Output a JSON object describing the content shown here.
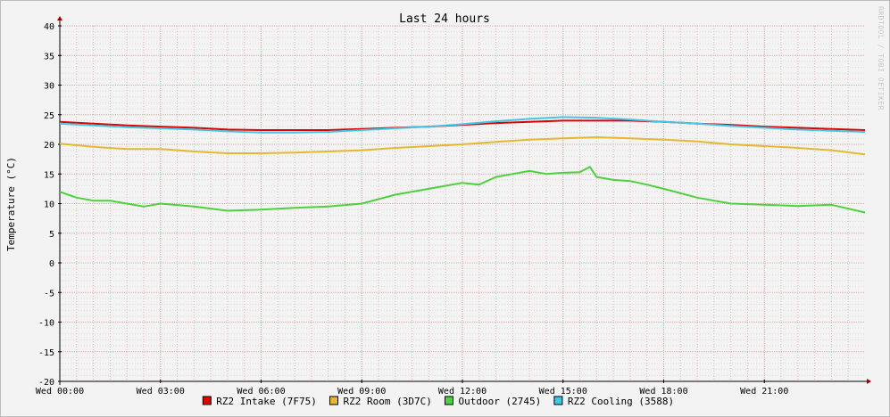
{
  "chart_data": {
    "type": "line",
    "title": "Last 24 hours",
    "ylabel": "Temperature (°C)",
    "watermark": "RRDTOOL / TOBI OETIKER",
    "ylim": [
      -20,
      40
    ],
    "y_ticks": [
      40,
      35,
      30,
      25,
      20,
      15,
      10,
      5,
      0,
      -5,
      -10,
      -15,
      -20
    ],
    "xlim_hours": [
      0,
      24
    ],
    "x_ticks": [
      {
        "hour": 0,
        "label": "Wed 00:00"
      },
      {
        "hour": 3,
        "label": "Wed 03:00"
      },
      {
        "hour": 6,
        "label": "Wed 06:00"
      },
      {
        "hour": 9,
        "label": "Wed 09:00"
      },
      {
        "hour": 12,
        "label": "Wed 12:00"
      },
      {
        "hour": 15,
        "label": "Wed 15:00"
      },
      {
        "hour": 18,
        "label": "Wed 18:00"
      },
      {
        "hour": 21,
        "label": "Wed 21:00"
      }
    ],
    "grid": true,
    "legend_position": "bottom",
    "series": [
      {
        "name": "RZ2 Intake (7F75)",
        "color": "#e00000",
        "x": [
          0,
          1,
          2,
          3,
          4,
          5,
          6,
          7,
          8,
          9,
          10,
          11,
          12,
          13,
          14,
          15,
          16,
          17,
          18,
          19,
          20,
          21,
          22,
          23,
          24
        ],
        "y": [
          23.8,
          23.5,
          23.2,
          23.0,
          22.8,
          22.5,
          22.4,
          22.4,
          22.4,
          22.6,
          22.8,
          23.0,
          23.3,
          23.6,
          23.8,
          24.0,
          24.0,
          24.0,
          23.8,
          23.5,
          23.3,
          23.0,
          22.8,
          22.6,
          22.4
        ]
      },
      {
        "name": "RZ2 Room (3D7C)",
        "color": "#e5b830",
        "x": [
          0,
          1,
          2,
          3,
          4,
          5,
          6,
          7,
          8,
          9,
          10,
          11,
          12,
          13,
          14,
          15,
          16,
          17,
          18,
          19,
          20,
          21,
          22,
          23,
          24
        ],
        "y": [
          20.1,
          19.6,
          19.2,
          19.2,
          18.8,
          18.5,
          18.5,
          18.6,
          18.8,
          19.0,
          19.4,
          19.7,
          20.0,
          20.4,
          20.8,
          21.0,
          21.2,
          21.0,
          20.8,
          20.5,
          20.0,
          19.7,
          19.4,
          19.0,
          18.3
        ]
      },
      {
        "name": "Outdoor (2745)",
        "color": "#4ed13e",
        "x": [
          0,
          0.5,
          1,
          1.5,
          2,
          2.5,
          3,
          4,
          5,
          6,
          7,
          8,
          9,
          10,
          11,
          11.5,
          12,
          12.5,
          13,
          13.5,
          14,
          14.5,
          15,
          15.5,
          15.8,
          16,
          16.5,
          17,
          17.5,
          18,
          19,
          20,
          21,
          22,
          23,
          24
        ],
        "y": [
          12.0,
          11.0,
          10.5,
          10.5,
          10.0,
          9.5,
          10.0,
          9.5,
          8.8,
          9.0,
          9.3,
          9.5,
          10.0,
          11.5,
          12.5,
          13.0,
          13.5,
          13.2,
          14.5,
          15.0,
          15.5,
          15.0,
          15.2,
          15.3,
          16.2,
          14.5,
          14.0,
          13.8,
          13.2,
          12.5,
          11.0,
          10.0,
          9.8,
          9.6,
          9.8,
          8.5
        ]
      },
      {
        "name": "RZ2 Cooling (3588)",
        "color": "#40c8e8",
        "x": [
          0,
          1,
          2,
          3,
          4,
          5,
          6,
          7,
          8,
          9,
          10,
          11,
          12,
          13,
          14,
          15,
          16,
          17,
          18,
          19,
          20,
          21,
          22,
          23,
          24
        ],
        "y": [
          23.5,
          23.2,
          22.9,
          22.7,
          22.5,
          22.2,
          22.0,
          22.0,
          22.1,
          22.4,
          22.7,
          23.0,
          23.4,
          23.9,
          24.3,
          24.6,
          24.5,
          24.2,
          23.8,
          23.5,
          23.1,
          22.8,
          22.5,
          22.3,
          22.1
        ]
      }
    ]
  }
}
